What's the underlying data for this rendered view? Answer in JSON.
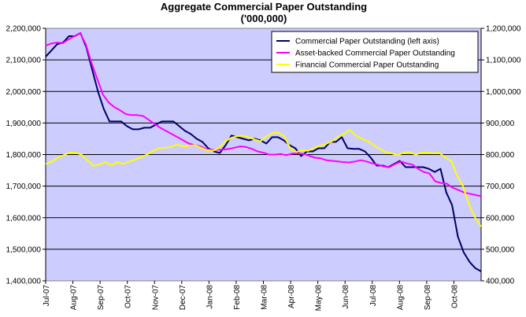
{
  "chart_data": {
    "type": "line",
    "title": "Aggregate Commercial Paper Outstanding",
    "subtitle": "('000,000)",
    "left_axis": {
      "ylim": [
        1400000,
        2200000
      ],
      "ticks": [
        "1,400,000",
        "1,500,000",
        "1,600,000",
        "1,700,000",
        "1,800,000",
        "1,900,000",
        "2,000,000",
        "2,100,000",
        "2,200,000"
      ]
    },
    "right_axis": {
      "ylim": [
        400000,
        1200000
      ],
      "ticks": [
        "400,000",
        "500,000",
        "600,000",
        "700,000",
        "800,000",
        "900,000",
        "1,000,000",
        "1,100,000",
        "1,200,000"
      ]
    },
    "x_ticks": [
      "Jul-07",
      "Aug-07",
      "Sep-07",
      "Oct-07",
      "Nov-07",
      "Dec-07",
      "Jan-08",
      "Feb-08",
      "Mar-08",
      "Apr-08",
      "May-08",
      "Jun-08",
      "Jul-08",
      "Aug-08",
      "Sep-08",
      "Oct-08"
    ],
    "x_range_weeks": [
      0,
      66
    ],
    "grid": "horizontal",
    "legend_position": "top-right",
    "plot_background": "#ccccff",
    "series": [
      {
        "name": "Commercial Paper Outstanding (left axis)",
        "axis": "left",
        "color": "#000066",
        "values": [
          2110000,
          2130000,
          2150000,
          2155000,
          2175000,
          2175000,
          2185000,
          2140000,
          2070000,
          2000000,
          1945000,
          1905000,
          1905000,
          1905000,
          1890000,
          1880000,
          1880000,
          1885000,
          1885000,
          1895000,
          1905000,
          1905000,
          1905000,
          1890000,
          1875000,
          1865000,
          1850000,
          1840000,
          1820000,
          1810000,
          1805000,
          1830000,
          1860000,
          1855000,
          1850000,
          1845000,
          1850000,
          1845000,
          1835000,
          1855000,
          1855000,
          1845000,
          1830000,
          1820000,
          1795000,
          1810000,
          1810000,
          1820000,
          1820000,
          1840000,
          1840000,
          1855000,
          1820000,
          1818000,
          1818000,
          1810000,
          1790000,
          1765000,
          1765000,
          1760000,
          1770000,
          1780000,
          1760000,
          1760000,
          1760000,
          1760000,
          1755000,
          1745000,
          1755000,
          1680000,
          1640000,
          1540000,
          1490000,
          1460000,
          1440000,
          1430000
        ]
      },
      {
        "name": "Asset-backed Commercial Paper Outstanding",
        "axis": "right",
        "color": "#ff00ff",
        "values": [
          1145000,
          1152000,
          1155000,
          1153000,
          1165000,
          1175000,
          1185000,
          1150000,
          1090000,
          1040000,
          990000,
          965000,
          950000,
          940000,
          928000,
          925000,
          925000,
          922000,
          910000,
          897000,
          885000,
          875000,
          865000,
          855000,
          845000,
          835000,
          830000,
          826000,
          818000,
          815000,
          815000,
          816000,
          818000,
          822000,
          826000,
          824000,
          818000,
          810000,
          806000,
          800000,
          800000,
          802000,
          798000,
          803000,
          804000,
          802000,
          796000,
          790000,
          788000,
          782000,
          780000,
          778000,
          776000,
          775000,
          778000,
          782000,
          778000,
          772000,
          768000,
          762000,
          760000,
          770000,
          778000,
          772000,
          768000,
          755000,
          745000,
          740000,
          715000,
          710000,
          708000,
          695000,
          688000,
          680000,
          676000,
          672000,
          668000
        ]
      },
      {
        "name": "Financial Commercial Paper Outstanding",
        "axis": "right",
        "color": "#ffff00",
        "values": [
          770000,
          778000,
          790000,
          798000,
          806000,
          806000,
          800000,
          782000,
          764000,
          768000,
          776000,
          766000,
          776000,
          770000,
          778000,
          784000,
          792000,
          800000,
          812000,
          820000,
          822000,
          824000,
          832000,
          826000,
          828000,
          830000,
          822000,
          814000,
          812000,
          820000,
          840000,
          852000,
          858000,
          860000,
          855000,
          848000,
          842000,
          858000,
          868000,
          870000,
          858000,
          820000,
          808000,
          814000,
          812000,
          822000,
          828000,
          834000,
          842000,
          856000,
          866000,
          878000,
          860000,
          850000,
          842000,
          830000,
          818000,
          808000,
          804000,
          798000,
          806000,
          808000,
          800000,
          806000,
          806000,
          804000,
          806000,
          790000,
          780000,
          732000,
          698000,
          640000,
          600000,
          572000
        ]
      }
    ]
  }
}
